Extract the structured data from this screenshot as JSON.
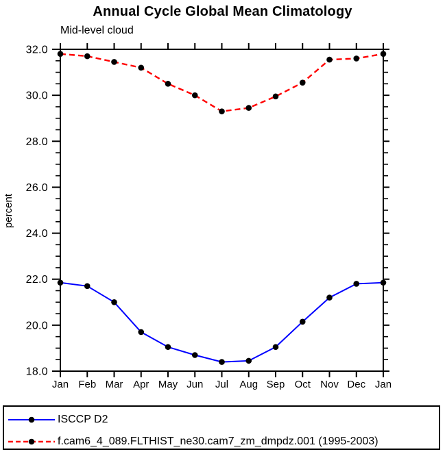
{
  "chart_data": {
    "type": "line",
    "title": "Annual Cycle Global Mean Climatology",
    "subtitle": "Mid-level cloud",
    "ylabel": "percent",
    "xlabel": "",
    "categories": [
      "Jan",
      "Feb",
      "Mar",
      "Apr",
      "May",
      "Jun",
      "Jul",
      "Aug",
      "Sep",
      "Oct",
      "Nov",
      "Dec",
      "Jan"
    ],
    "ylim": [
      18.0,
      32.0
    ],
    "ytick_values": [
      18,
      20,
      22,
      24,
      26,
      28,
      30,
      32
    ],
    "ytick_labels": [
      "18.0",
      "20.0",
      "22.0",
      "24.0",
      "26.0",
      "28.0",
      "30.0",
      "32.0"
    ],
    "y_minor_interval": 0.5,
    "grid": false,
    "legend_position": "bottom-box",
    "series": [
      {
        "name": "ISCCP D2",
        "color": "#0000ff",
        "line_style": "solid",
        "marker": "filled-circle",
        "marker_color": "#000000",
        "values": [
          21.85,
          21.7,
          21.0,
          19.7,
          19.05,
          18.7,
          18.4,
          18.45,
          19.05,
          20.15,
          21.2,
          21.8,
          21.85
        ]
      },
      {
        "name": "f.cam6_4_089.FLTHIST_ne30.cam7_zm_dmpdz.001 (1995-2003)",
        "color": "#ff0000",
        "line_style": "dashed",
        "marker": "filled-circle",
        "marker_color": "#000000",
        "values": [
          31.8,
          31.7,
          31.45,
          31.2,
          30.5,
          30.0,
          29.3,
          29.45,
          29.95,
          30.55,
          31.55,
          31.6,
          31.8
        ]
      }
    ]
  },
  "colors": {
    "background": "#ffffff",
    "axis": "#000000",
    "series_obs": "#0000ff",
    "series_model": "#ff0000",
    "marker": "#000000"
  }
}
